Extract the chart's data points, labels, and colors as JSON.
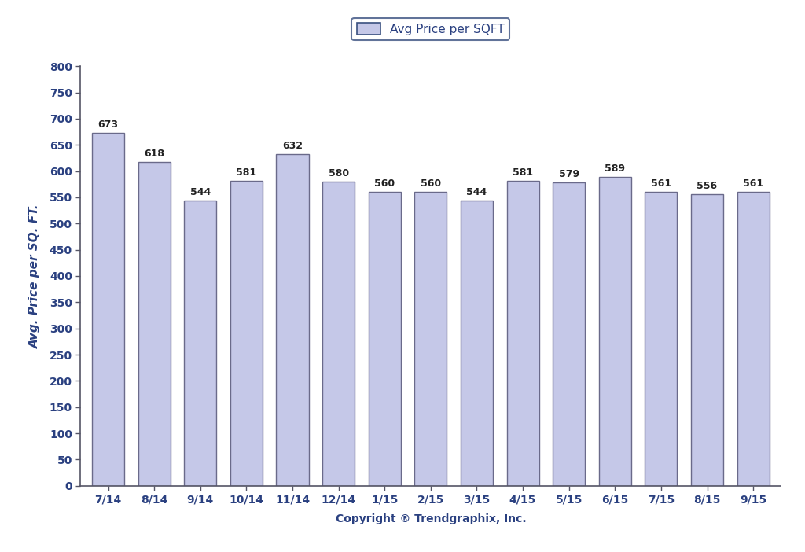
{
  "categories": [
    "7/14",
    "8/14",
    "9/14",
    "10/14",
    "11/14",
    "12/14",
    "1/15",
    "2/15",
    "3/15",
    "4/15",
    "5/15",
    "6/15",
    "7/15",
    "8/15",
    "9/15"
  ],
  "values": [
    673,
    618,
    544,
    581,
    632,
    580,
    560,
    560,
    544,
    581,
    579,
    589,
    561,
    556,
    561
  ],
  "bar_color": "#c5c8e8",
  "bar_edgecolor": "#6a6a8a",
  "ylim": [
    0,
    800
  ],
  "yticks": [
    0,
    50,
    100,
    150,
    200,
    250,
    300,
    350,
    400,
    450,
    500,
    550,
    600,
    650,
    700,
    750,
    800
  ],
  "ylabel": "Avg. Price per SQ. FT.",
  "xlabel": "Copyright ® Trendgraphix, Inc.",
  "legend_label": "Avg Price per SQFT",
  "background_color": "#ffffff",
  "legend_facecolor": "#c5c8e8",
  "legend_edgecolor": "#3a5080",
  "tick_color": "#2a4080",
  "label_fontsize": 9,
  "axis_fontsize": 10,
  "ylabel_fontsize": 11,
  "xlabel_fontsize": 10
}
